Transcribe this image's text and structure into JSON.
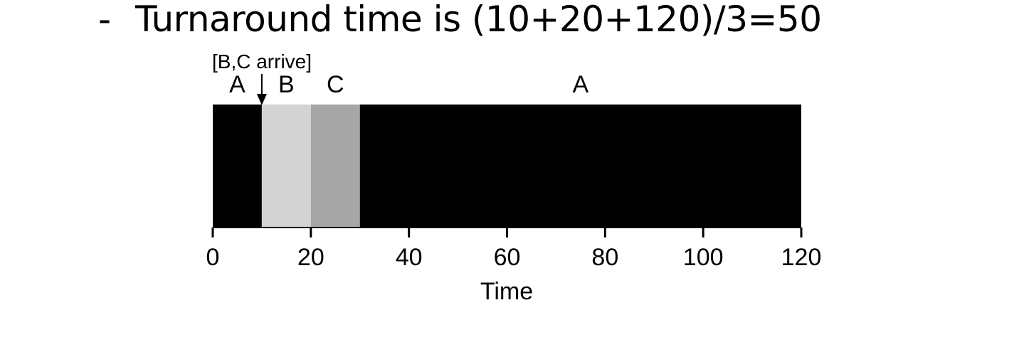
{
  "bullet": {
    "dash": "-",
    "text": "Turnaround time is (10+20+120)/3=50"
  },
  "annotation": {
    "text": "[B,C arrive]",
    "at": 10
  },
  "chart_data": {
    "type": "gantt",
    "xlabel": "Time",
    "xlim": [
      0,
      120
    ],
    "ticks": [
      0,
      20,
      40,
      60,
      80,
      100,
      120
    ],
    "segments": [
      {
        "job": "A",
        "start": 0,
        "end": 10,
        "color": "#000000"
      },
      {
        "job": "B",
        "start": 10,
        "end": 20,
        "color": "#d3d3d3"
      },
      {
        "job": "C",
        "start": 20,
        "end": 30,
        "color": "#a6a6a6"
      },
      {
        "job": "A",
        "start": 30,
        "end": 120,
        "color": "#000000"
      }
    ]
  }
}
